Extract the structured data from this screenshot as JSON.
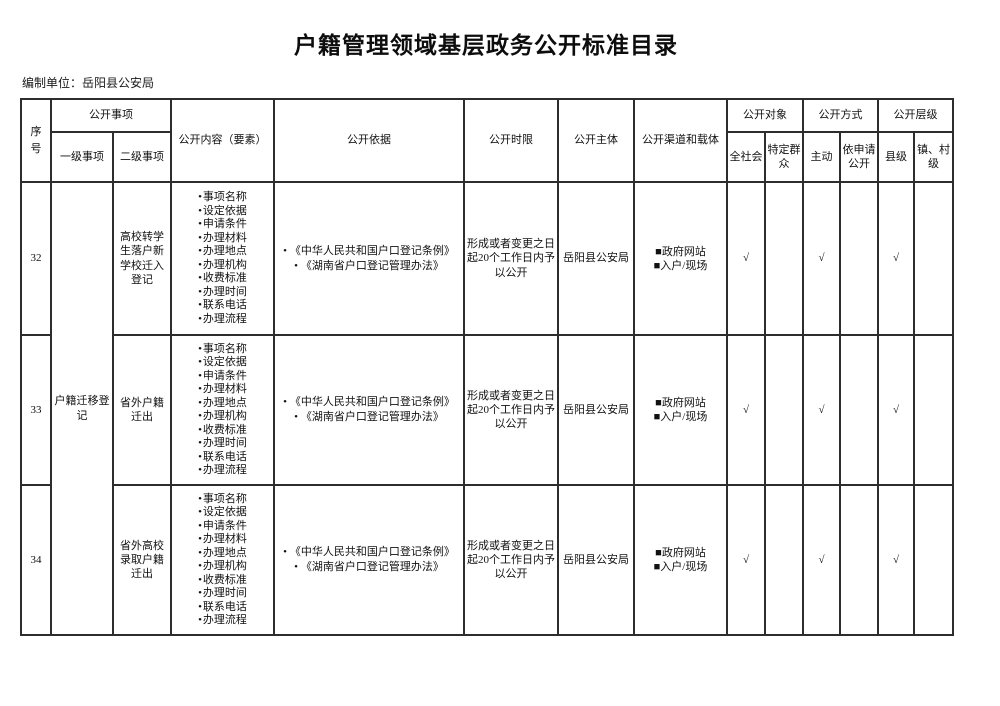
{
  "colors": {
    "text": "#111111",
    "border": "#2d2d2d",
    "background": "#ffffff"
  },
  "glyphs": {
    "bullet": "•",
    "square": "■",
    "check": "√"
  },
  "page": {
    "title": "户籍管理领域基层政务公开标准目录",
    "prepared_by": "编制单位：岳阳县公安局"
  },
  "table": {
    "headers": {
      "seq": "序号",
      "open_items_group": "公开事项",
      "level1": "一级事项",
      "level2": "二级事项",
      "content": "公开内容（要素）",
      "basis": "公开依据",
      "time_limit": "公开时限",
      "subject": "公开主体",
      "channels": "公开渠道和载体",
      "audience_group": "公开对象",
      "audience_all": "全社会",
      "audience_specific": "特定群众",
      "method_group": "公开方式",
      "method_active": "主动",
      "method_on_request": "依申请公开",
      "level_group": "公开层级",
      "level_county": "县级",
      "level_town": "镇、村级"
    },
    "level1_merged": "户籍迁移登记",
    "rows": [
      {
        "seq": "32",
        "level2": "高校转学生落户新学校迁入登记",
        "content_items": [
          "事项名称",
          "设定依据",
          "申请条件",
          "办理材料",
          "办理地点",
          "办理机构",
          "收费标准",
          "办理时间",
          "联系电话",
          "办理流程"
        ],
        "basis_items": [
          "《中华人民共和国户口登记条例》",
          "《湖南省户口登记管理办法》"
        ],
        "time_limit": "形成或者变更之日起20个工作日内予以公开",
        "subject": "岳阳县公安局",
        "channel_items": [
          "政府网站",
          "入户/现场"
        ],
        "audience_all": "√",
        "audience_specific": "",
        "method_active": "√",
        "method_on_request": "",
        "level_county": "√",
        "level_town": ""
      },
      {
        "seq": "33",
        "level2": "省外户籍迁出",
        "content_items": [
          "事项名称",
          "设定依据",
          "申请条件",
          "办理材料",
          "办理地点",
          "办理机构",
          "收费标准",
          "办理时间",
          "联系电话",
          "办理流程"
        ],
        "basis_items": [
          "《中华人民共和国户口登记条例》",
          "《湖南省户口登记管理办法》"
        ],
        "time_limit": "形成或者变更之日起20个工作日内予以公开",
        "subject": "岳阳县公安局",
        "channel_items": [
          "政府网站",
          "入户/现场"
        ],
        "audience_all": "√",
        "audience_specific": "",
        "method_active": "√",
        "method_on_request": "",
        "level_county": "√",
        "level_town": ""
      },
      {
        "seq": "34",
        "level2": "省外高校录取户籍迁出",
        "content_items": [
          "事项名称",
          "设定依据",
          "申请条件",
          "办理材料",
          "办理地点",
          "办理机构",
          "收费标准",
          "办理时间",
          "联系电话",
          "办理流程"
        ],
        "basis_items": [
          "《中华人民共和国户口登记条例》",
          "《湖南省户口登记管理办法》"
        ],
        "time_limit": "形成或者变更之日起20个工作日内予以公开",
        "subject": "岳阳县公安局",
        "channel_items": [
          "政府网站",
          "入户/现场"
        ],
        "audience_all": "√",
        "audience_specific": "",
        "method_active": "√",
        "method_on_request": "",
        "level_county": "√",
        "level_town": ""
      }
    ]
  }
}
